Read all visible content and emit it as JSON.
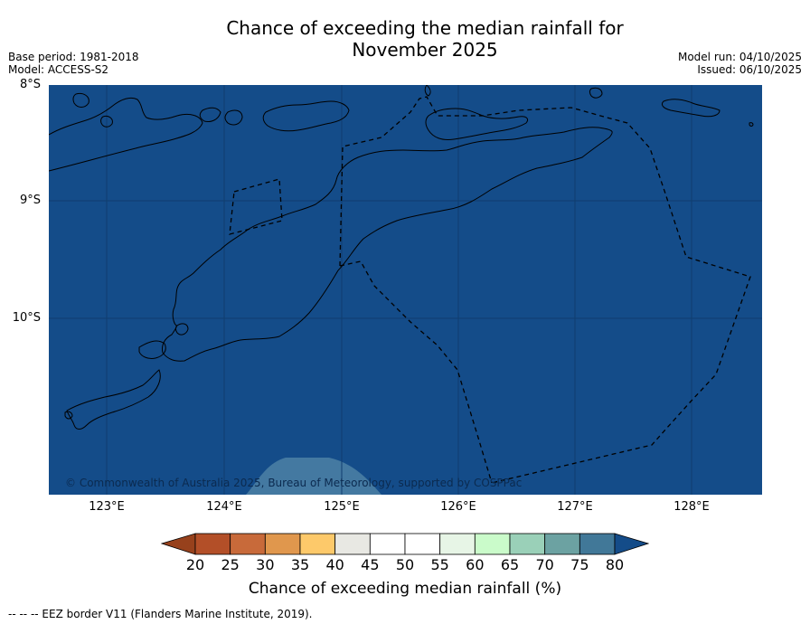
{
  "title": {
    "line1": "Chance of exceeding the median rainfall for",
    "line2": "November 2025"
  },
  "meta_left": {
    "base_period": "Base period: 1981-2018",
    "model": "Model: ACCESS-S2"
  },
  "meta_right": {
    "model_run": "Model run: 04/10/2025",
    "issued": "Issued: 06/10/2025"
  },
  "map": {
    "lat_labels": [
      "8°S",
      "9°S",
      "10°S"
    ],
    "lon_labels": [
      "123°E",
      "124°E",
      "125°E",
      "126°E",
      "127°E",
      "128°E"
    ],
    "copyright": "© Commonwealth of Australia 2025, Bureau of Meteorology, supported by COSPPac",
    "colors": {
      "ocean_fill": "#144C89",
      "patch_fill": "#4479A1",
      "coast": "#000000",
      "gridline": "#0f3d6e"
    }
  },
  "colorbar": {
    "ticks": [
      "20",
      "25",
      "30",
      "35",
      "40",
      "45",
      "50",
      "55",
      "60",
      "65",
      "70",
      "75",
      "80"
    ],
    "colors": {
      "under": "#97411C",
      "bins": [
        "#B34F28",
        "#C86A3A",
        "#E0974D",
        "#FDC96A",
        "#E8E8E3",
        "#FFFFFF",
        "#FFFFFF",
        "#E7F5E6",
        "#CAFBCA",
        "#9AD0B8",
        "#6CA2A2",
        "#417898"
      ],
      "over": "#144C89"
    },
    "label": "Chance of exceeding median rainfall (%)"
  },
  "legend_note": "--  --  -- EEZ border V11 (Flanders Marine Institute, 2019)."
}
